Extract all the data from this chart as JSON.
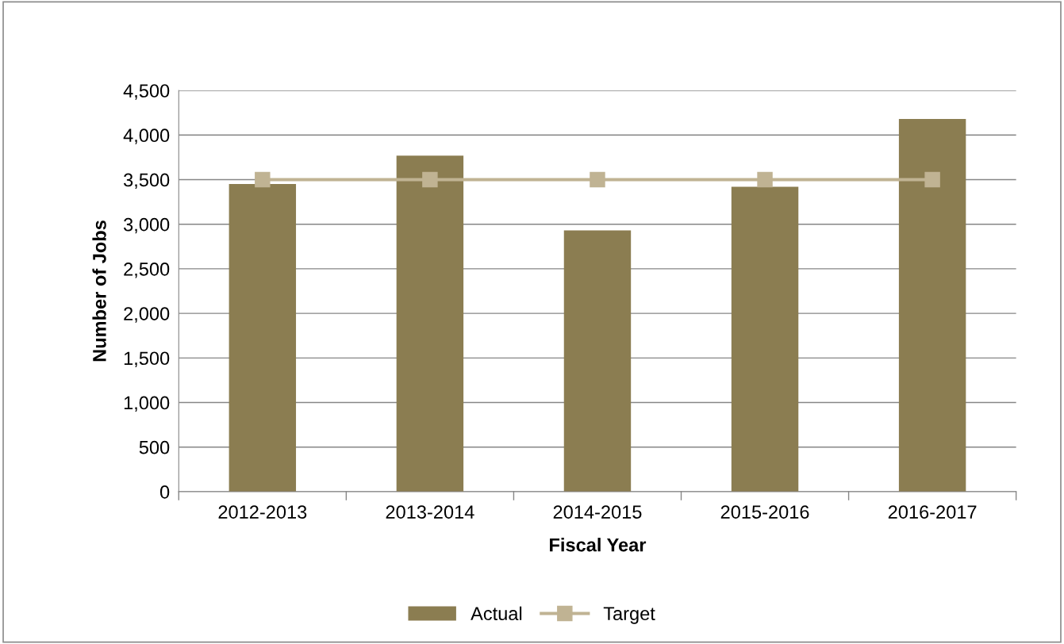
{
  "chart_data": {
    "type": "bar",
    "xlabel": "Fiscal Year",
    "ylabel": "Number of Jobs",
    "categories": [
      "2012-2013",
      "2013-2014",
      "2014-2015",
      "2015-2016",
      "2016-2017"
    ],
    "series": [
      {
        "name": "Actual",
        "color": "#8b7d51",
        "values": [
          3450,
          3770,
          2930,
          3420,
          4180
        ]
      },
      {
        "name": "Target",
        "type": "line",
        "color": "#c0b393",
        "marker": "square",
        "values": [
          3500,
          3500,
          3500,
          3500,
          3500
        ]
      }
    ],
    "ylim": [
      0,
      4500
    ],
    "yticks": [
      0,
      500,
      {
        "value": 1000,
        "label": "1,000"
      },
      {
        "value": 1500,
        "label": "1,500"
      },
      {
        "value": 2000,
        "label": "2,000"
      },
      {
        "value": 2500,
        "label": "2,500"
      },
      {
        "value": 3000,
        "label": "3,000"
      },
      {
        "value": 3500,
        "label": "3,500"
      },
      {
        "value": 4000,
        "label": "4,000"
      },
      {
        "value": 4500,
        "label": "4,500"
      }
    ],
    "grid": "y",
    "legend": "bottom"
  }
}
